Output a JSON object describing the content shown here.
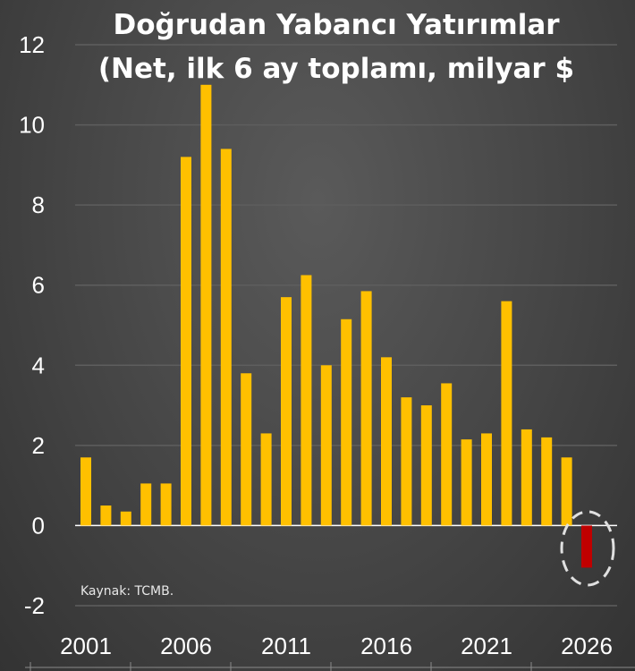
{
  "chart_data": {
    "type": "bar",
    "title_lines": [
      "Doğrudan Yabancı Yatırımlar",
      "(Net, ilk 6 ay toplamı, milyar $"
    ],
    "source": "Kaynak: TCMB.",
    "xlabel": "",
    "ylabel": "",
    "ylim": [
      -2,
      12
    ],
    "y_ticks": [
      -2,
      0,
      2,
      4,
      6,
      8,
      10,
      12
    ],
    "x_ticks": [
      2001,
      2006,
      2011,
      2016,
      2021,
      2026
    ],
    "categories": [
      2001,
      2002,
      2003,
      2004,
      2005,
      2006,
      2007,
      2008,
      2009,
      2010,
      2011,
      2012,
      2013,
      2014,
      2015,
      2016,
      2017,
      2018,
      2019,
      2020,
      2021,
      2022,
      2023,
      2024,
      2025,
      2026
    ],
    "values": [
      1.7,
      0.5,
      0.35,
      1.05,
      1.05,
      9.2,
      11.0,
      9.4,
      3.8,
      2.3,
      5.7,
      6.25,
      4.0,
      5.15,
      5.85,
      4.2,
      3.2,
      3.0,
      3.55,
      2.15,
      2.3,
      5.6,
      2.4,
      2.2,
      1.7,
      -1.05
    ],
    "grid": true,
    "colors": {
      "positive_bar": "#ffc000",
      "negative_bar": "#c00000",
      "gridline": "#5e5e5e",
      "highlight_circle": "#e0e0e0"
    },
    "highlight": {
      "category": 2026
    }
  }
}
